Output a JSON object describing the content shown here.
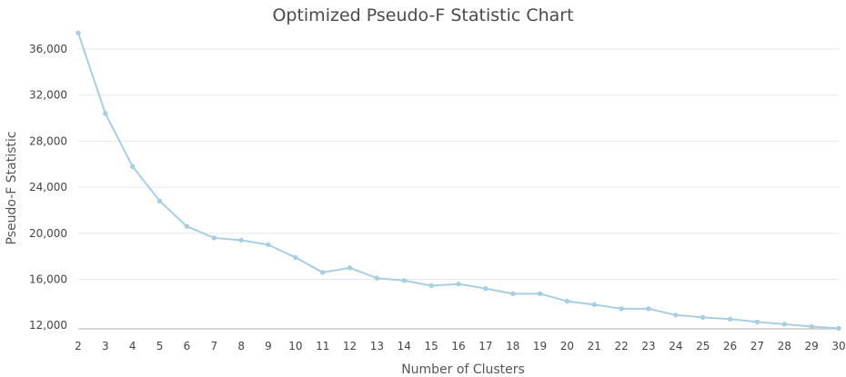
{
  "chart_data": {
    "type": "line",
    "title": "Optimized Pseudo-F Statistic Chart",
    "xlabel": "Number of Clusters",
    "ylabel": "Pseudo-F Statistic",
    "x": [
      2,
      3,
      4,
      5,
      6,
      7,
      8,
      9,
      10,
      11,
      12,
      13,
      14,
      15,
      16,
      17,
      18,
      19,
      20,
      21,
      22,
      23,
      24,
      25,
      26,
      27,
      28,
      29,
      30
    ],
    "y_ticks": [
      12000,
      16000,
      20000,
      24000,
      28000,
      32000,
      36000
    ],
    "y_tick_labels": [
      "12,000",
      "16,000",
      "20,000",
      "24,000",
      "28,000",
      "32,000",
      "36,000"
    ],
    "ylim": [
      11700,
      37500
    ],
    "grid": true,
    "legend": "none",
    "series": [
      {
        "values": [
          37400,
          30400,
          25800,
          22800,
          20600,
          19600,
          19400,
          19000,
          17900,
          16600,
          17000,
          16100,
          15900,
          15450,
          15600,
          15200,
          14750,
          14750,
          14100,
          13800,
          13450,
          13450,
          12900,
          12700,
          12550,
          12300,
          12100,
          11900,
          11750
        ],
        "color": "#a6cfe2"
      }
    ]
  }
}
